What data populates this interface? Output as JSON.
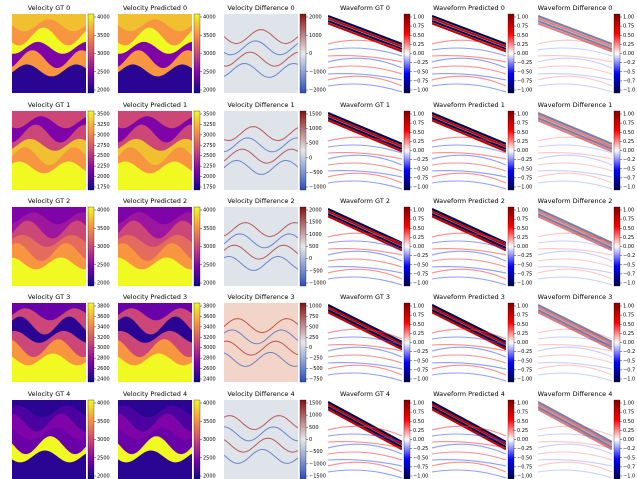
{
  "panels": [
    [
      {
        "title": "Velocity GT 0",
        "ticks": [
          "4000",
          "3500",
          "3000",
          "2500",
          "2000"
        ]
      },
      {
        "title": "Velocity Predicted 0",
        "ticks": [
          "4000",
          "3500",
          "3000",
          "2500",
          "2000"
        ]
      },
      {
        "title": "Velocity Difference 0",
        "ticks": [
          "2000",
          "1000",
          "0",
          "−1000",
          "−2000"
        ]
      },
      {
        "title": "Waveform GT 0",
        "ticks": [
          "1.00",
          "0.75",
          "0.50",
          "0.25",
          "0.00",
          "−0.25",
          "−0.50",
          "−0.75",
          "−1.00"
        ]
      },
      {
        "title": "Waveform Predicted 0",
        "ticks": [
          "1.00",
          "0.75",
          "0.50",
          "0.25",
          "0.00",
          "−0.25",
          "−0.50",
          "−0.75",
          "−1.00"
        ]
      },
      {
        "title": "Waveform Difference 0",
        "ticks": [
          "1.00",
          "0.75",
          "0.50",
          "0.25",
          "0.00",
          "−0.2",
          "−0.5",
          "−0.7",
          "−1.0"
        ]
      }
    ],
    [
      {
        "title": "Velocity GT 1",
        "ticks": [
          "3500",
          "3250",
          "3000",
          "2750",
          "2500",
          "2250",
          "2000",
          "1750"
        ]
      },
      {
        "title": "Velocity Predicted 1",
        "ticks": [
          "3500",
          "3250",
          "3000",
          "2750",
          "2500",
          "2250",
          "2000",
          "1750"
        ]
      },
      {
        "title": "Velocity Difference 1",
        "ticks": [
          "1500",
          "1000",
          "500",
          "0",
          "−500",
          "−1000"
        ]
      },
      {
        "title": "Waveform GT 1",
        "ticks": [
          "1.00",
          "0.75",
          "0.50",
          "0.25",
          "0.00",
          "−0.25",
          "−0.50",
          "−0.75",
          "−1.00"
        ]
      },
      {
        "title": "Waveform Predicted 1",
        "ticks": [
          "1.00",
          "0.75",
          "0.50",
          "0.25",
          "0.00",
          "−0.25",
          "−0.50",
          "−0.75",
          "−1.00"
        ]
      },
      {
        "title": "Waveform Difference 1",
        "ticks": [
          "1.00",
          "0.75",
          "0.50",
          "0.25",
          "0.00",
          "−0.2",
          "−0.5",
          "−0.7",
          "−1.0"
        ]
      }
    ],
    [
      {
        "title": "Velocity GT 2",
        "ticks": [
          "4000",
          "3500",
          "3000",
          "2500",
          "2000"
        ]
      },
      {
        "title": "Velocity Predicted 2",
        "ticks": [
          "4000",
          "3500",
          "3000",
          "2500",
          "2000"
        ]
      },
      {
        "title": "Velocity Difference 2",
        "ticks": [
          "2000",
          "1500",
          "1000",
          "500",
          "0",
          "−500",
          "−1000"
        ]
      },
      {
        "title": "Waveform GT 2",
        "ticks": [
          "1.00",
          "0.75",
          "0.50",
          "0.25",
          "0.00",
          "−0.25",
          "−0.50",
          "−0.75",
          "−1.00"
        ]
      },
      {
        "title": "Waveform Predicted 2",
        "ticks": [
          "1.00",
          "0.75",
          "0.50",
          "0.25",
          "0.00",
          "−0.25",
          "−0.50",
          "−0.75",
          "−1.00"
        ]
      },
      {
        "title": "Waveform Difference 2",
        "ticks": [
          "1.00",
          "0.75",
          "0.50",
          "0.25",
          "0.00",
          "−0.2",
          "−0.5",
          "−0.7",
          "−1.0"
        ]
      }
    ],
    [
      {
        "title": "Velocity GT 3",
        "ticks": [
          "3800",
          "3600",
          "3400",
          "3200",
          "3000",
          "2800",
          "2600",
          "2400"
        ]
      },
      {
        "title": "Velocity Predicted 3",
        "ticks": [
          "3800",
          "3600",
          "3400",
          "3200",
          "3000",
          "2800",
          "2600",
          "2400"
        ]
      },
      {
        "title": "Velocity Difference 3",
        "ticks": [
          "1000",
          "750",
          "500",
          "250",
          "0",
          "−250",
          "−500",
          "−750"
        ]
      },
      {
        "title": "Waveform GT 3",
        "ticks": [
          "1.00",
          "0.75",
          "0.50",
          "0.25",
          "0.00",
          "−0.25",
          "−0.50",
          "−0.75",
          "−1.00"
        ]
      },
      {
        "title": "Waveform Predicted 3",
        "ticks": [
          "1.00",
          "0.75",
          "0.50",
          "0.25",
          "0.00",
          "−0.25",
          "−0.50",
          "−0.75",
          "−1.00"
        ]
      },
      {
        "title": "Waveform Difference 3",
        "ticks": [
          "1.00",
          "0.75",
          "0.50",
          "0.25",
          "0.00",
          "−0.2",
          "−0.5",
          "−0.7",
          "−1.0"
        ]
      }
    ],
    [
      {
        "title": "Velocity GT 4",
        "ticks": [
          "4000",
          "3500",
          "3000",
          "2500",
          "2000"
        ]
      },
      {
        "title": "Velocity Predicted 4",
        "ticks": [
          "4000",
          "3500",
          "3000",
          "2500",
          "2000"
        ]
      },
      {
        "title": "Velocity Difference 4",
        "ticks": [
          "1500",
          "1000",
          "500",
          "0",
          "−500",
          "−1000",
          "−1500"
        ]
      },
      {
        "title": "Waveform GT 4",
        "ticks": [
          "1.00",
          "0.75",
          "0.50",
          "0.25",
          "0.00",
          "−0.25",
          "−0.50",
          "−0.75",
          "−1.00"
        ]
      },
      {
        "title": "Waveform Predicted 4",
        "ticks": [
          "1.00",
          "0.75",
          "0.50",
          "0.25",
          "0.00",
          "−0.25",
          "−0.50",
          "−0.75",
          "−1.00"
        ]
      },
      {
        "title": "Waveform Difference 4",
        "ticks": [
          "1.00",
          "0.75",
          "0.50",
          "0.25",
          "0.00",
          "−0.2",
          "−0.5",
          "−0.7",
          "−1.0"
        ]
      }
    ]
  ]
}
